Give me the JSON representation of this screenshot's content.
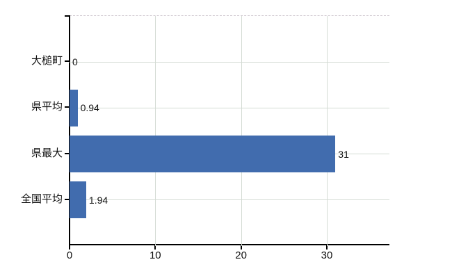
{
  "chart_data": {
    "type": "bar",
    "orientation": "horizontal",
    "title": "",
    "xlabel": "",
    "ylabel": "",
    "categories": [
      "大槌町",
      "県平均",
      "県最大",
      "全国平均"
    ],
    "values": [
      0,
      0.94,
      31,
      1.94
    ],
    "value_labels": [
      "0",
      "0.94",
      "31",
      "1.94"
    ],
    "x_ticks": [
      0,
      10,
      20,
      30
    ],
    "x_tick_labels": [
      "0",
      "10",
      "20",
      "30"
    ],
    "xlim": [
      0,
      37.3
    ],
    "grid": true,
    "legend": false,
    "plot_top_border_style": "dashed",
    "colors": {
      "bar": "#416cae",
      "gridline": "#d4dbd4",
      "plot_top_border": "#d0c8d0",
      "axis": "#000000",
      "text": "#111111",
      "background": "#ffffff"
    }
  }
}
